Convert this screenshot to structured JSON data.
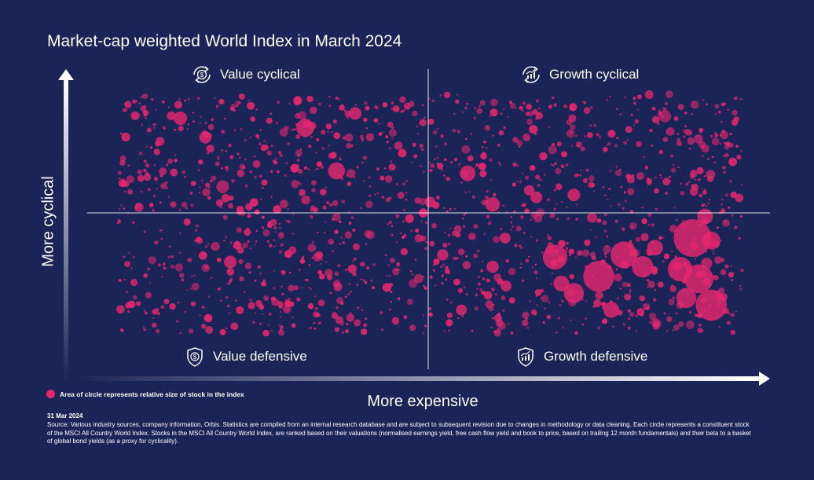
{
  "title": "Market-cap weighted World Index in March 2024",
  "quadrants": {
    "top_left": "Value cyclical",
    "top_right": "Growth cyclical",
    "bottom_left": "Value defensive",
    "bottom_right": "Growth defensive"
  },
  "legend_text": "Area of circle represents relative size of stock in the index",
  "y_axis_label": "More cyclical",
  "x_axis_label": "More expensive",
  "date": "31 Mar 2024",
  "source": "Source: Various industry sources, company information, Orbis. Statistics are compiled from an internal research database and are subject to subsequent revision due to changes in methodology or data cleaning. Each circle represents a constituent stock of the MSCI All Country World Index. Stocks in the MSCI All Country World Index, are ranked based on their valuations (normalised earnings yield, free cash flow yield and book to price, based on trailing 12 month fundamentals) and their beta to a basket of global bond yields (as a proxy for cyclicality).",
  "colors": {
    "background": "#1b2457",
    "bubble": "#e5276f",
    "text": "#ffffff"
  },
  "chart_data": {
    "type": "scatter",
    "title": "Market-cap weighted World Index in March 2024",
    "xlabel": "More expensive",
    "ylabel": "More cyclical",
    "xlim": [
      0,
      1
    ],
    "ylim": [
      0,
      1
    ],
    "grid": false,
    "legend": "bottom-left",
    "size_encoding": "Area of circle represents relative size of stock in the index",
    "points_note": "Approximately 2,000 small circles spread across all quadrants; large circles listed below",
    "series": [
      {
        "values": [
          {
            "x": 0.7,
            "y": 0.32,
            "s": 0.45
          },
          {
            "x": 0.77,
            "y": 0.24,
            "s": 0.6
          },
          {
            "x": 0.81,
            "y": 0.33,
            "s": 0.5
          },
          {
            "x": 0.84,
            "y": 0.28,
            "s": 0.38
          },
          {
            "x": 0.92,
            "y": 0.4,
            "s": 0.75
          },
          {
            "x": 0.9,
            "y": 0.27,
            "s": 0.45
          },
          {
            "x": 0.93,
            "y": 0.23,
            "s": 0.55
          },
          {
            "x": 0.95,
            "y": 0.12,
            "s": 0.6
          },
          {
            "x": 0.91,
            "y": 0.15,
            "s": 0.35
          },
          {
            "x": 0.95,
            "y": 0.39,
            "s": 0.3
          },
          {
            "x": 0.73,
            "y": 0.17,
            "s": 0.35
          },
          {
            "x": 0.79,
            "y": 0.1,
            "s": 0.25
          },
          {
            "x": 0.86,
            "y": 0.36,
            "s": 0.25
          },
          {
            "x": 0.94,
            "y": 0.49,
            "s": 0.25
          },
          {
            "x": 0.71,
            "y": 0.21,
            "s": 0.25
          },
          {
            "x": 0.3,
            "y": 0.86,
            "s": 0.3
          },
          {
            "x": 0.35,
            "y": 0.68,
            "s": 0.28
          },
          {
            "x": 0.56,
            "y": 0.67,
            "s": 0.25
          },
          {
            "x": 0.6,
            "y": 0.54,
            "s": 0.22
          },
          {
            "x": 0.1,
            "y": 0.9,
            "s": 0.2
          },
          {
            "x": 0.18,
            "y": 0.3,
            "s": 0.18
          },
          {
            "x": 0.38,
            "y": 0.92,
            "s": 0.18
          },
          {
            "x": 0.14,
            "y": 0.82,
            "s": 0.17
          },
          {
            "x": 0.73,
            "y": 0.58,
            "s": 0.18
          },
          {
            "x": 0.67,
            "y": 0.57,
            "s": 0.16
          },
          {
            "x": 0.5,
            "y": 0.55,
            "s": 0.14
          },
          {
            "x": 0.52,
            "y": 0.33,
            "s": 0.15
          },
          {
            "x": 0.6,
            "y": 0.28,
            "s": 0.17
          },
          {
            "x": 0.55,
            "y": 0.1,
            "s": 0.14
          },
          {
            "x": 0.62,
            "y": 0.4,
            "s": 0.14
          }
        ]
      }
    ]
  }
}
